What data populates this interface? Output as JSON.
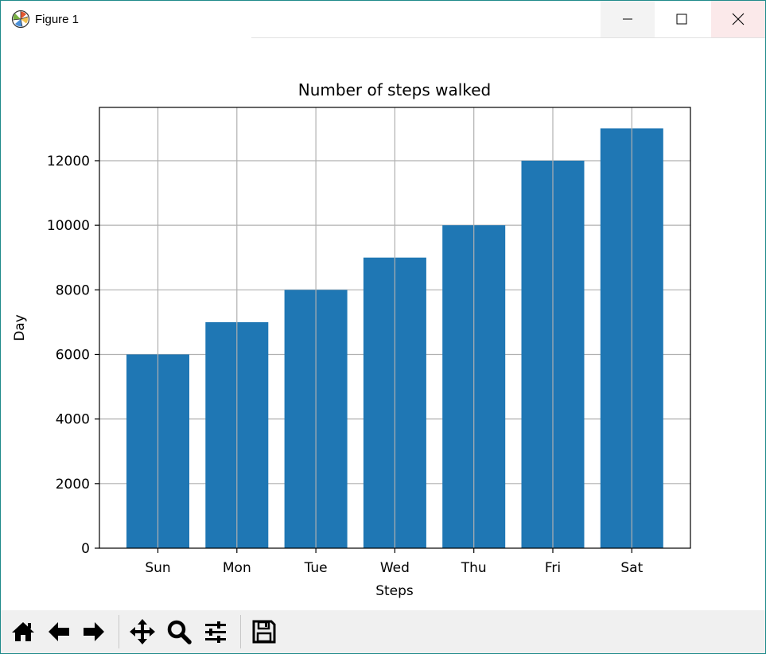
{
  "window": {
    "title": "Figure 1",
    "icons": [
      "matplotlib-icon",
      "minimize-icon",
      "maximize-icon",
      "close-icon"
    ]
  },
  "toolbar": {
    "buttons": [
      {
        "name": "home",
        "icon": "home-icon"
      },
      {
        "name": "back",
        "icon": "arrow-left-icon"
      },
      {
        "name": "forward",
        "icon": "arrow-right-icon"
      },
      {
        "name": "pan",
        "icon": "move-icon"
      },
      {
        "name": "zoom",
        "icon": "magnifier-icon"
      },
      {
        "name": "configure-subplots",
        "icon": "sliders-icon"
      },
      {
        "name": "save",
        "icon": "floppy-disk-icon"
      }
    ]
  },
  "chart_data": {
    "type": "bar",
    "title": "Number of steps walked",
    "xlabel": "Steps",
    "ylabel": "Day",
    "categories": [
      "Sun",
      "Mon",
      "Tue",
      "Wed",
      "Thu",
      "Fri",
      "Sat"
    ],
    "values": [
      6000,
      7000,
      8000,
      9000,
      10000,
      12000,
      13000
    ],
    "ylim": [
      0,
      13650
    ],
    "yticks": [
      0,
      2000,
      4000,
      6000,
      8000,
      10000,
      12000
    ],
    "grid": true,
    "bar_color": "#1f77b4",
    "grid_color": "#b0b0b0"
  }
}
